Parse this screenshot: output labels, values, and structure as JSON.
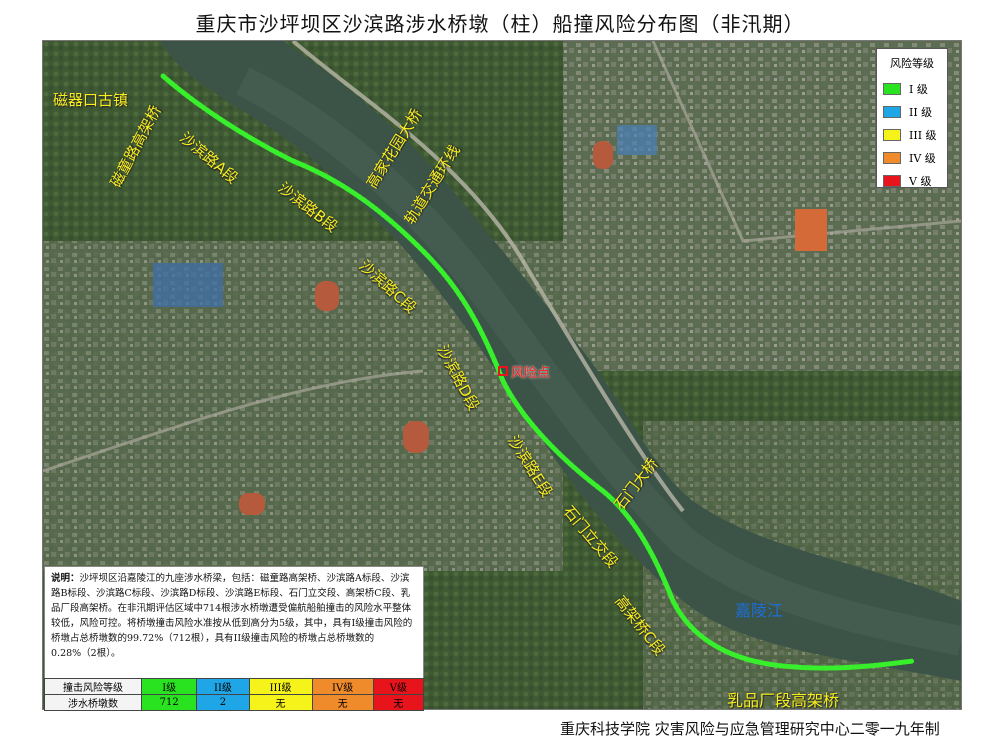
{
  "title": "重庆市沙坪坝区沙滨路涉水桥墩（柱）船撞风险分布图（非汛期）",
  "map": {
    "place_labels": {
      "ciqikou": "磁器口古镇",
      "jialingjiang": "嘉陵江"
    },
    "segment_labels": {
      "cizhong": "磁童路高架桥",
      "sha_a": "沙滨路A段",
      "sha_b": "沙滨路B段",
      "sha_c": "沙滨路C段",
      "sha_d": "沙滨路D段",
      "sha_e": "沙滨路E段",
      "shimen_li": "石门立交段",
      "gaojia_c": "高架桥C段",
      "rupin": "乳品厂段高架桥",
      "shimen_bridge": "石门大桥",
      "gaojia_bridge": "高家花园大桥",
      "guidao": "轨道交通环线"
    },
    "risk_point": "风险点"
  },
  "legend": {
    "title": "风险等级",
    "items": [
      {
        "label": "I 级",
        "color": "#29e320"
      },
      {
        "label": "II 级",
        "color": "#1fa6e6"
      },
      {
        "label": "III 级",
        "color": "#f5f31a"
      },
      {
        "label": "IV 级",
        "color": "#f08b2b"
      },
      {
        "label": "V 级",
        "color": "#e8141b"
      }
    ]
  },
  "note": {
    "heading": "说明：",
    "body": "沙坪坝区沿嘉陵江的九座涉水桥梁，包括：磁童路高架桥、沙滨路A标段、沙滨路B标段、沙滨路C标段、沙滨路D标段、沙滨路E标段、石门立交段、高架桥C段、乳品厂段高架桥。在非汛期评估区域中714根涉水桥墩遭受偏航船舶撞击的风险水平整体较低，风险可控。将桥墩撞击风险水准按从低到高分为5级，其中，具有I级撞击风险的桥墩占总桥墩数的99.72%（712根），具有II级撞击风险的桥墩占总桥墩数的0.28%（2根）。"
  },
  "table": {
    "row1_header": "撞击风险等级",
    "row2_header": "涉水桥墩数",
    "levels": [
      "I级",
      "II级",
      "III级",
      "IV级",
      "V级"
    ],
    "counts": [
      "712",
      "2",
      "无",
      "无",
      "无"
    ],
    "colors": [
      "#29e320",
      "#1fa6e6",
      "#f5f31a",
      "#f08b2b",
      "#e8141b"
    ]
  },
  "footer": "重庆科技学院  灾害风险与应急管理研究中心二零一九年制"
}
